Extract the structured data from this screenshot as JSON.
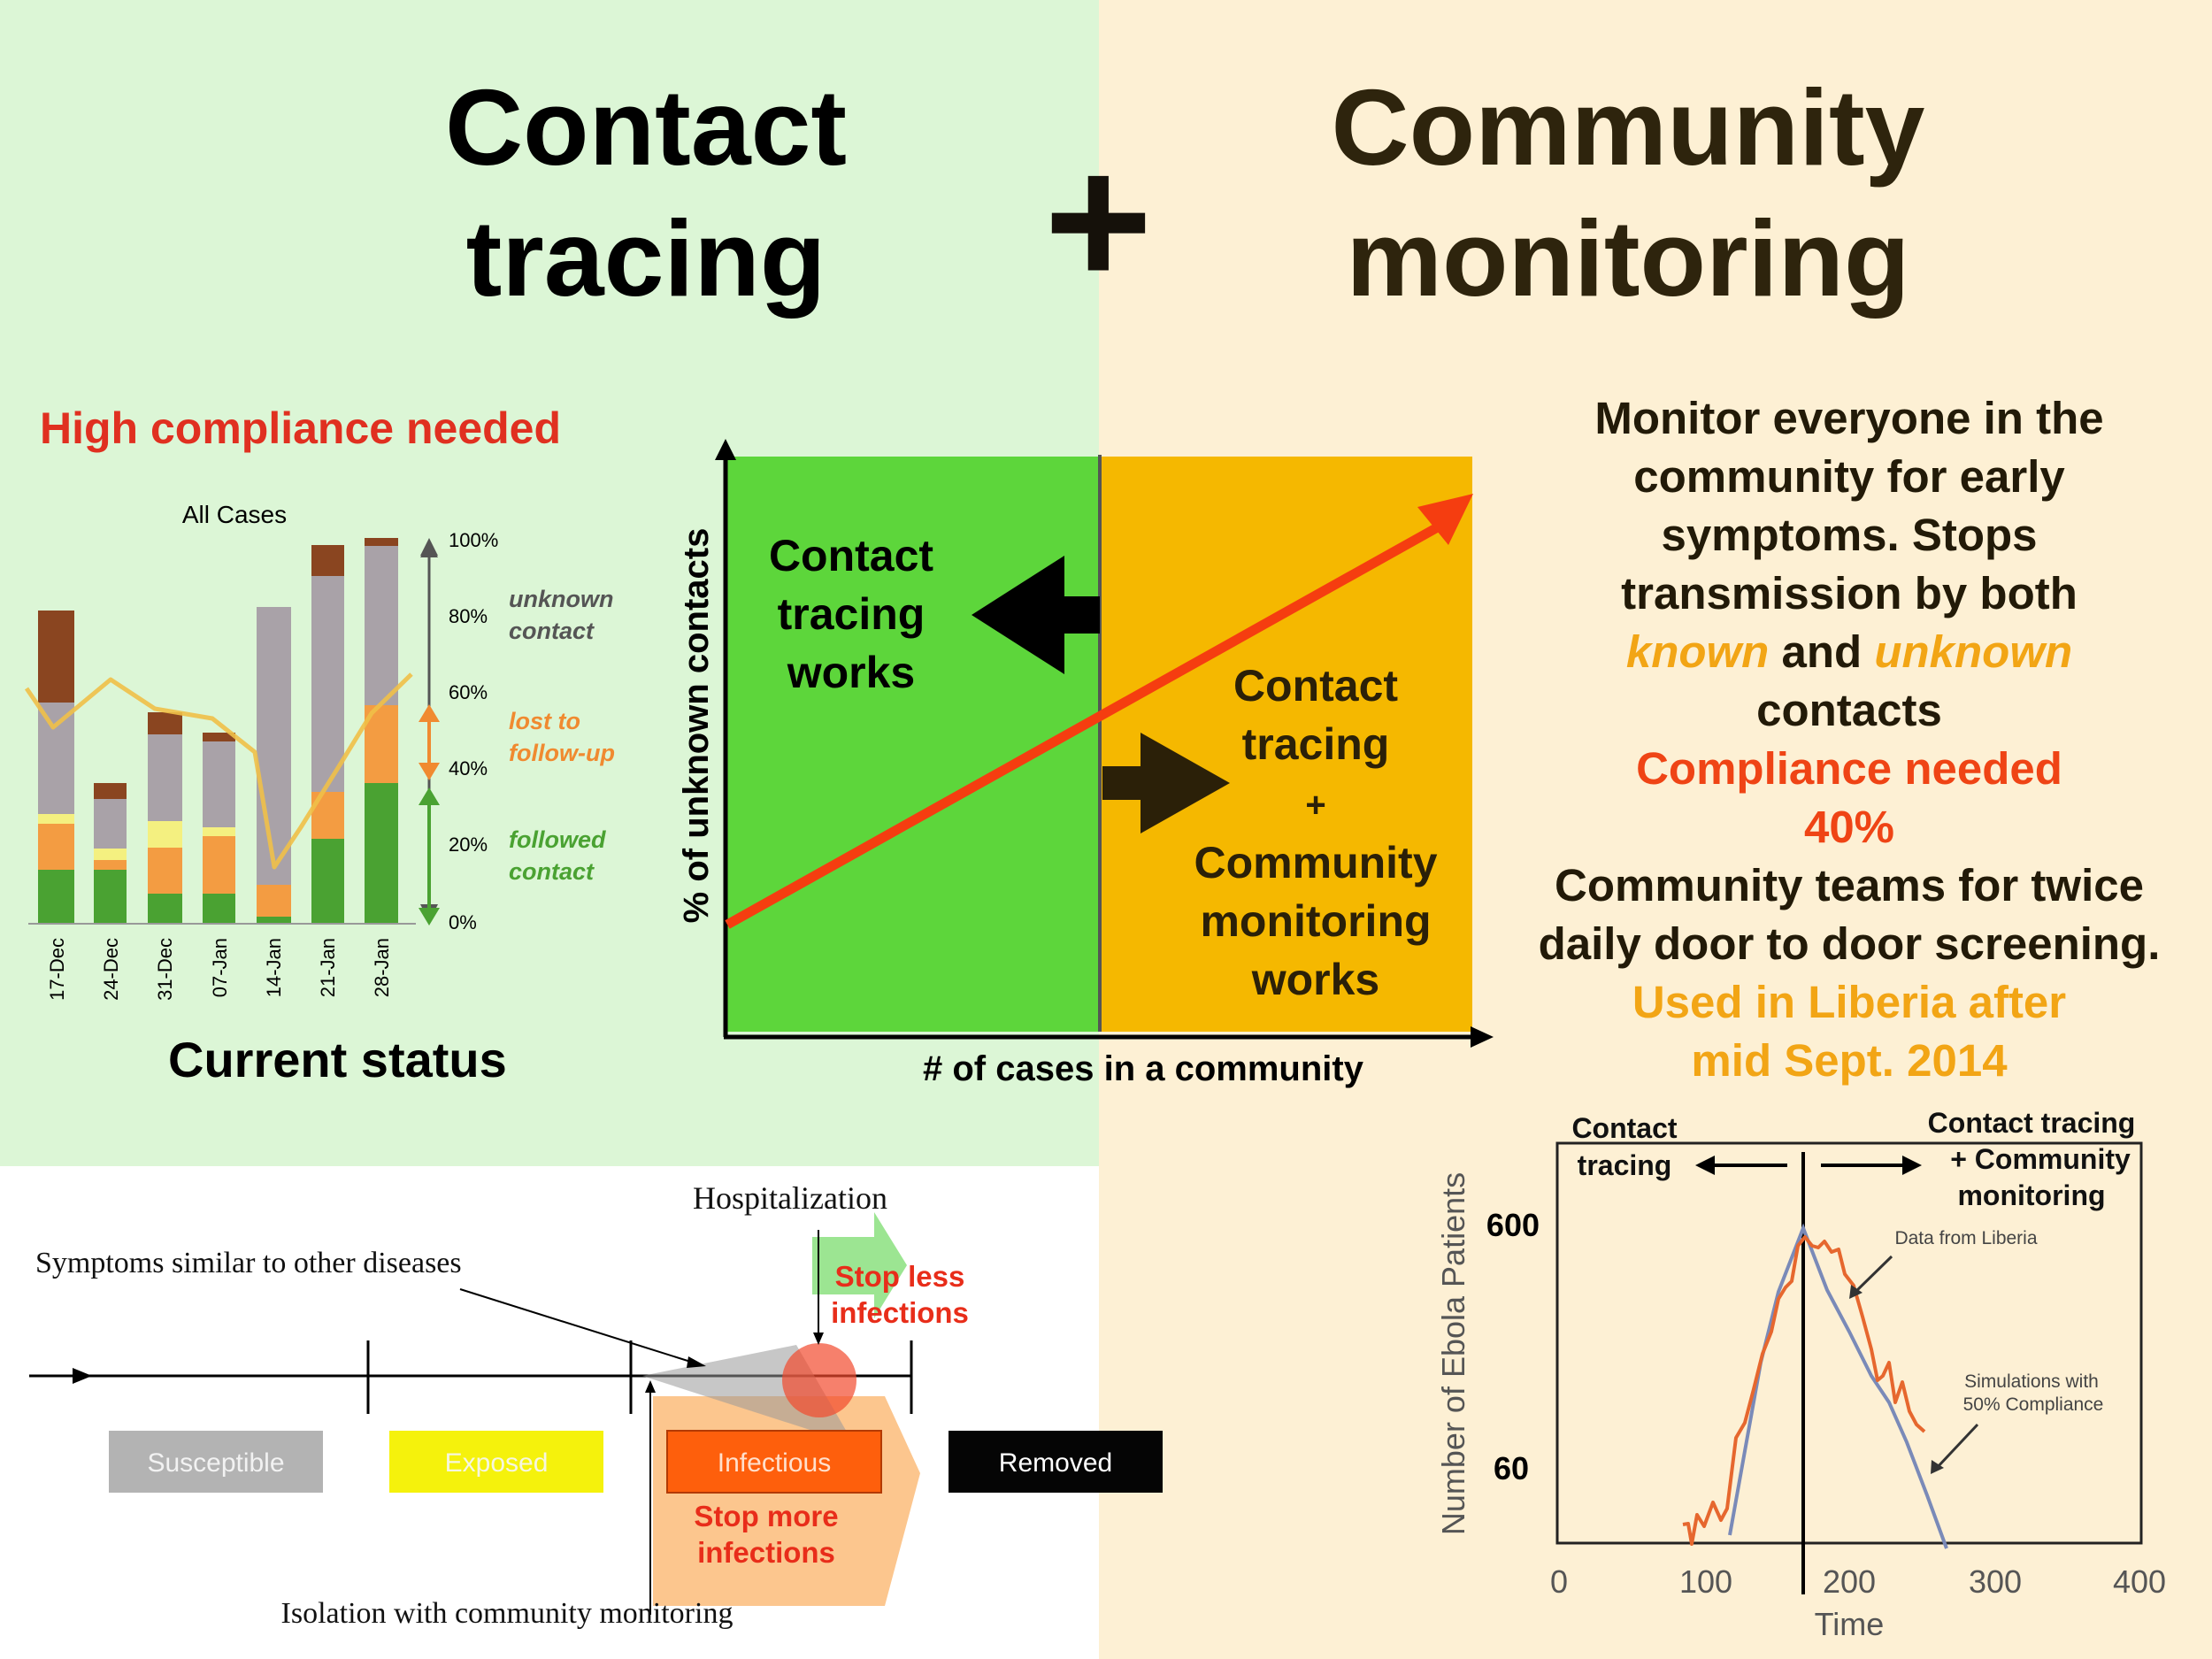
{
  "title_left": {
    "line1": "Contact",
    "line2": "tracing"
  },
  "plus_sign": "+",
  "title_right": {
    "line1": "Community",
    "line2": "monitoring"
  },
  "left_panel": {
    "compliance_heading": "High compliance needed",
    "footer": "Current status"
  },
  "compliance_chart": {
    "title": "All Cases",
    "y_ticks": [
      "100%",
      "80%",
      "60%",
      "40%",
      "20%",
      "0%"
    ],
    "categories": [
      "17-Dec",
      "24-Dec",
      "31-Dec",
      "07-Jan",
      "14-Jan",
      "21-Jan",
      "28-Jan"
    ],
    "bracket_labels": {
      "unknown": [
        "unknown",
        "contact"
      ],
      "lost": [
        "lost to",
        "follow-up"
      ],
      "followed": [
        "followed",
        "contact"
      ]
    },
    "colors": {
      "followed": "#4aa232",
      "lost": "#f39c42",
      "yellow": "#f4f080",
      "unknown": "#a9a2a8",
      "brown": "#8a4520",
      "line": "#f0c048"
    }
  },
  "center_chart": {
    "y_axis_label": "% of unknown contacts",
    "x_axis_label": "# of cases in a community",
    "left_zone_label": [
      "Contact",
      "tracing",
      "works"
    ],
    "right_zone_label": [
      "Contact",
      "tracing",
      "+",
      "Community",
      "monitoring",
      "works"
    ],
    "colors": {
      "left_zone": "#5dd63b",
      "right_zone": "#f5b800",
      "line": "#f53d10"
    }
  },
  "monitor_text": {
    "line1": "Monitor everyone in the",
    "line2": "community for early",
    "line3": "symptoms. Stops",
    "line4": "transmission by both",
    "known": "known",
    "and": "and",
    "unknown": "unknown",
    "line6": "contacts",
    "compliance_needed": "Compliance needed",
    "compliance_value": "40%",
    "teams_line1": "Community teams for twice",
    "teams_line2": "daily door to door screening.",
    "used_line1": "Used in Liberia after",
    "used_line2": "mid Sept. 2014"
  },
  "timeline": {
    "hospitalization": "Hospitalization",
    "symptoms": "Symptoms similar to other diseases",
    "stop_less": [
      "Stop less",
      "infections"
    ],
    "stop_more": [
      "Stop more",
      "infections"
    ],
    "isolation": "Isolation with community monitoring",
    "stages": [
      "Susceptible",
      "Exposed",
      "Infectious",
      "Removed"
    ]
  },
  "liberia_chart": {
    "left_phase": [
      "Contact",
      "tracing"
    ],
    "right_phase": [
      "Contact tracing",
      "+ Community",
      "monitoring"
    ],
    "annotation_data": "Data from Liberia",
    "annotation_sim": [
      "Simulations with",
      "50% Compliance"
    ],
    "ylabel": "Number of Ebola Patients",
    "xlabel": "Time",
    "y_ticks": [
      "600",
      "60"
    ],
    "x_ticks": [
      "0",
      "100",
      "200",
      "300",
      "400"
    ]
  }
}
